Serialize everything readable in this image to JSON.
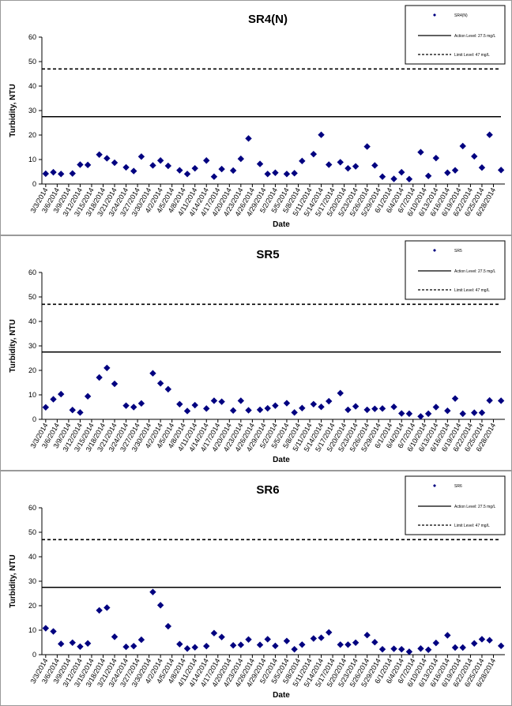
{
  "chart_data": [
    {
      "type": "scatter",
      "title": "SR4(N)",
      "xlabel": "Date",
      "ylabel": "Turbidity, NTU",
      "ylim": [
        0,
        60
      ],
      "yticks": [
        0,
        10,
        20,
        30,
        40,
        50,
        60
      ],
      "grid": false,
      "legend_position": "top-right",
      "x_tick_labels": [
        "3/3/2014",
        "3/6/2014",
        "3/9/2014",
        "3/12/2014",
        "3/15/2014",
        "3/18/2014",
        "3/21/2014",
        "3/24/2014",
        "3/27/2014",
        "3/30/2014",
        "4/2/2014",
        "4/5/2014",
        "4/8/2014",
        "4/11/2014",
        "4/14/2014",
        "4/17/2014",
        "4/20/2014",
        "4/23/2014",
        "4/26/2014",
        "4/29/2014",
        "5/2/2014",
        "5/5/2014",
        "5/8/2014",
        "5/11/2014",
        "5/14/2014",
        "5/17/2014",
        "5/20/2014",
        "5/23/2014",
        "5/26/2014",
        "5/29/2014",
        "6/1/2014",
        "6/4/2014",
        "6/7/2014",
        "6/10/2014",
        "6/13/2014",
        "6/16/2014",
        "6/19/2014",
        "6/22/2014",
        "6/25/2014",
        "6/28/2014"
      ],
      "x": [
        "3/3/2014",
        "3/5/2014",
        "3/7/2014",
        "3/10/2014",
        "3/12/2014",
        "3/14/2014",
        "3/17/2014",
        "3/19/2014",
        "3/21/2014",
        "3/24/2014",
        "3/26/2014",
        "3/28/2014",
        "3/31/2014",
        "4/2/2014",
        "4/4/2014",
        "4/7/2014",
        "4/9/2014",
        "4/11/2014",
        "4/14/2014",
        "4/16/2014",
        "4/18/2014",
        "4/21/2014",
        "4/23/2014",
        "4/25/2014",
        "4/28/2014",
        "4/30/2014",
        "5/2/2014",
        "5/5/2014",
        "5/7/2014",
        "5/9/2014",
        "5/12/2014",
        "5/14/2014",
        "5/16/2014",
        "5/19/2014",
        "5/21/2014",
        "5/23/2014",
        "5/26/2014",
        "5/28/2014",
        "5/30/2014",
        "6/2/2014",
        "6/4/2014",
        "6/6/2014",
        "6/9/2014",
        "6/11/2014",
        "6/13/2014",
        "6/16/2014",
        "6/18/2014",
        "6/20/2014",
        "6/23/2014",
        "6/25/2014",
        "6/27/2014",
        "6/30/2014"
      ],
      "series": [
        {
          "name": "SR4(N)",
          "marker": "diamond",
          "color": "#000080",
          "values": [
            4.2,
            4.8,
            4.1,
            4.3,
            7.9,
            7.8,
            12,
            10.5,
            8.7,
            6.8,
            5.3,
            11.2,
            7.6,
            9.6,
            7.4,
            5.6,
            4.1,
            6.4,
            9.6,
            3.0,
            6.1,
            5.5,
            10.3,
            18.6,
            8.2,
            4.1,
            4.6,
            4.1,
            4.4,
            9.4,
            12.2,
            20.1,
            7.9,
            8.9,
            6.4,
            7.2,
            15.3,
            7.6,
            3.0,
            2.1,
            4.8,
            2.0,
            13.0,
            3.3,
            10.6,
            4.6,
            5.6,
            15.5,
            11.3,
            6.7,
            20.1,
            5.7
          ]
        }
      ],
      "lines": [
        {
          "name": "Action Level: 27.5 mg/L",
          "value": 27.5,
          "style": "solid"
        },
        {
          "name": "Limit Level: 47 mg/L",
          "value": 47,
          "style": "dashed"
        }
      ]
    },
    {
      "type": "scatter",
      "title": "SR5",
      "xlabel": "Date",
      "ylabel": "Turbidity, NTU",
      "ylim": [
        0,
        60
      ],
      "yticks": [
        0,
        10,
        20,
        30,
        40,
        50,
        60
      ],
      "grid": false,
      "legend_position": "top-right",
      "x_tick_labels": [
        "3/3/2014",
        "3/6/2014",
        "3/9/2014",
        "3/12/2014",
        "3/15/2014",
        "3/18/2014",
        "3/21/2014",
        "3/24/2014",
        "3/27/2014",
        "3/30/2014",
        "4/2/2014",
        "4/5/2014",
        "4/8/2014",
        "4/11/2014",
        "4/14/2014",
        "4/17/2014",
        "4/20/2014",
        "4/23/2014",
        "4/26/2014",
        "4/29/2014",
        "5/2/2014",
        "5/5/2014",
        "5/8/2014",
        "5/11/2014",
        "5/14/2014",
        "5/17/2014",
        "5/20/2014",
        "5/23/2014",
        "5/26/2014",
        "5/29/2014",
        "6/1/2014",
        "6/4/2014",
        "6/7/2014",
        "6/10/2014",
        "6/13/2014",
        "6/16/2014",
        "6/19/2014",
        "6/22/2014",
        "6/25/2014",
        "6/28/2014"
      ],
      "x": [
        "3/3/2014",
        "3/5/2014",
        "3/7/2014",
        "3/10/2014",
        "3/12/2014",
        "3/14/2014",
        "3/17/2014",
        "3/19/2014",
        "3/21/2014",
        "3/24/2014",
        "3/26/2014",
        "3/28/2014",
        "3/31/2014",
        "4/2/2014",
        "4/4/2014",
        "4/7/2014",
        "4/9/2014",
        "4/11/2014",
        "4/14/2014",
        "4/16/2014",
        "4/18/2014",
        "4/21/2014",
        "4/23/2014",
        "4/25/2014",
        "4/28/2014",
        "4/30/2014",
        "5/2/2014",
        "5/5/2014",
        "5/7/2014",
        "5/9/2014",
        "5/12/2014",
        "5/14/2014",
        "5/16/2014",
        "5/19/2014",
        "5/21/2014",
        "5/23/2014",
        "5/26/2014",
        "5/28/2014",
        "5/30/2014",
        "6/2/2014",
        "6/4/2014",
        "6/6/2014",
        "6/9/2014",
        "6/11/2014",
        "6/13/2014",
        "6/16/2014",
        "6/18/2014",
        "6/20/2014",
        "6/23/2014",
        "6/25/2014",
        "6/27/2014",
        "6/30/2014"
      ],
      "series": [
        {
          "name": "SR5",
          "marker": "diamond",
          "color": "#000080",
          "values": [
            4.9,
            8.2,
            10.3,
            3.8,
            2.8,
            9.4,
            17.1,
            21.0,
            14.5,
            5.6,
            5.0,
            6.5,
            18.8,
            14.7,
            12.3,
            6.2,
            3.4,
            5.8,
            4.4,
            7.6,
            7.2,
            3.6,
            7.6,
            3.7,
            3.9,
            4.5,
            5.6,
            6.6,
            2.8,
            4.6,
            6.2,
            5.1,
            7.4,
            10.7,
            3.9,
            5.3,
            3.9,
            4.3,
            4.4,
            5.1,
            2.4,
            2.3,
            1.2,
            2.3,
            5.0,
            3.5,
            8.5,
            2.3,
            2.7,
            2.7,
            7.7,
            7.6
          ]
        }
      ],
      "lines": [
        {
          "name": "Action Level: 27.5 mg/L",
          "value": 27.5,
          "style": "solid"
        },
        {
          "name": "Limit Level: 47 mg/L",
          "value": 47,
          "style": "dashed"
        }
      ]
    },
    {
      "type": "scatter",
      "title": "SR6",
      "xlabel": "Date",
      "ylabel": "Turbidity, NTU",
      "ylim": [
        0,
        60
      ],
      "yticks": [
        0,
        10,
        20,
        30,
        40,
        50,
        60
      ],
      "grid": false,
      "legend_position": "top-right",
      "x_tick_labels": [
        "3/3/2014",
        "3/6/2014",
        "3/9/2014",
        "3/12/2014",
        "3/15/2014",
        "3/18/2014",
        "3/21/2014",
        "3/24/2014",
        "3/27/2014",
        "3/30/2014",
        "4/2/2014",
        "4/5/2014",
        "4/8/2014",
        "4/11/2014",
        "4/14/2014",
        "4/17/2014",
        "4/20/2014",
        "4/23/2014",
        "4/26/2014",
        "4/29/2014",
        "5/2/2014",
        "5/5/2014",
        "5/8/2014",
        "5/11/2014",
        "5/14/2014",
        "5/17/2014",
        "5/20/2014",
        "5/23/2014",
        "5/26/2014",
        "5/29/2014",
        "6/1/2014",
        "6/4/2014",
        "6/7/2014",
        "6/10/2014",
        "6/13/2014",
        "6/16/2014",
        "6/19/2014",
        "6/22/2014",
        "6/25/2014",
        "6/28/2014"
      ],
      "x": [
        "3/3/2014",
        "3/5/2014",
        "3/7/2014",
        "3/10/2014",
        "3/12/2014",
        "3/14/2014",
        "3/17/2014",
        "3/19/2014",
        "3/21/2014",
        "3/24/2014",
        "3/26/2014",
        "3/28/2014",
        "3/31/2014",
        "4/2/2014",
        "4/4/2014",
        "4/7/2014",
        "4/9/2014",
        "4/11/2014",
        "4/14/2014",
        "4/16/2014",
        "4/18/2014",
        "4/21/2014",
        "4/23/2014",
        "4/25/2014",
        "4/28/2014",
        "4/30/2014",
        "5/2/2014",
        "5/5/2014",
        "5/7/2014",
        "5/9/2014",
        "5/12/2014",
        "5/14/2014",
        "5/16/2014",
        "5/19/2014",
        "5/21/2014",
        "5/23/2014",
        "5/26/2014",
        "5/28/2014",
        "5/30/2014",
        "6/2/2014",
        "6/4/2014",
        "6/6/2014",
        "6/9/2014",
        "6/11/2014",
        "6/13/2014",
        "6/16/2014",
        "6/18/2014",
        "6/20/2014",
        "6/23/2014",
        "6/25/2014",
        "6/27/2014",
        "6/30/2014"
      ],
      "series": [
        {
          "name": "SR6",
          "marker": "diamond",
          "color": "#000080",
          "values": [
            10.8,
            9.5,
            4.4,
            4.9,
            3.3,
            4.6,
            18.1,
            19.2,
            7.3,
            3.2,
            3.5,
            6.1,
            25.6,
            20.2,
            11.6,
            4.3,
            2.5,
            3.0,
            3.5,
            8.8,
            7.2,
            3.8,
            4.0,
            6.2,
            4.0,
            6.3,
            3.6,
            5.6,
            2.2,
            4.1,
            6.6,
            6.9,
            9.1,
            4.1,
            4.1,
            4.9,
            8.0,
            5.1,
            2.2,
            2.4,
            2.2,
            1.2,
            2.5,
            2.0,
            4.8,
            7.9,
            2.9,
            2.9,
            4.6,
            6.3,
            5.9,
            3.6
          ]
        }
      ],
      "lines": [
        {
          "name": "Action Level: 27.5 mg/L",
          "value": 27.5,
          "style": "solid"
        },
        {
          "name": "Limit Level: 47 mg/L",
          "value": 47,
          "style": "dashed"
        }
      ]
    }
  ]
}
